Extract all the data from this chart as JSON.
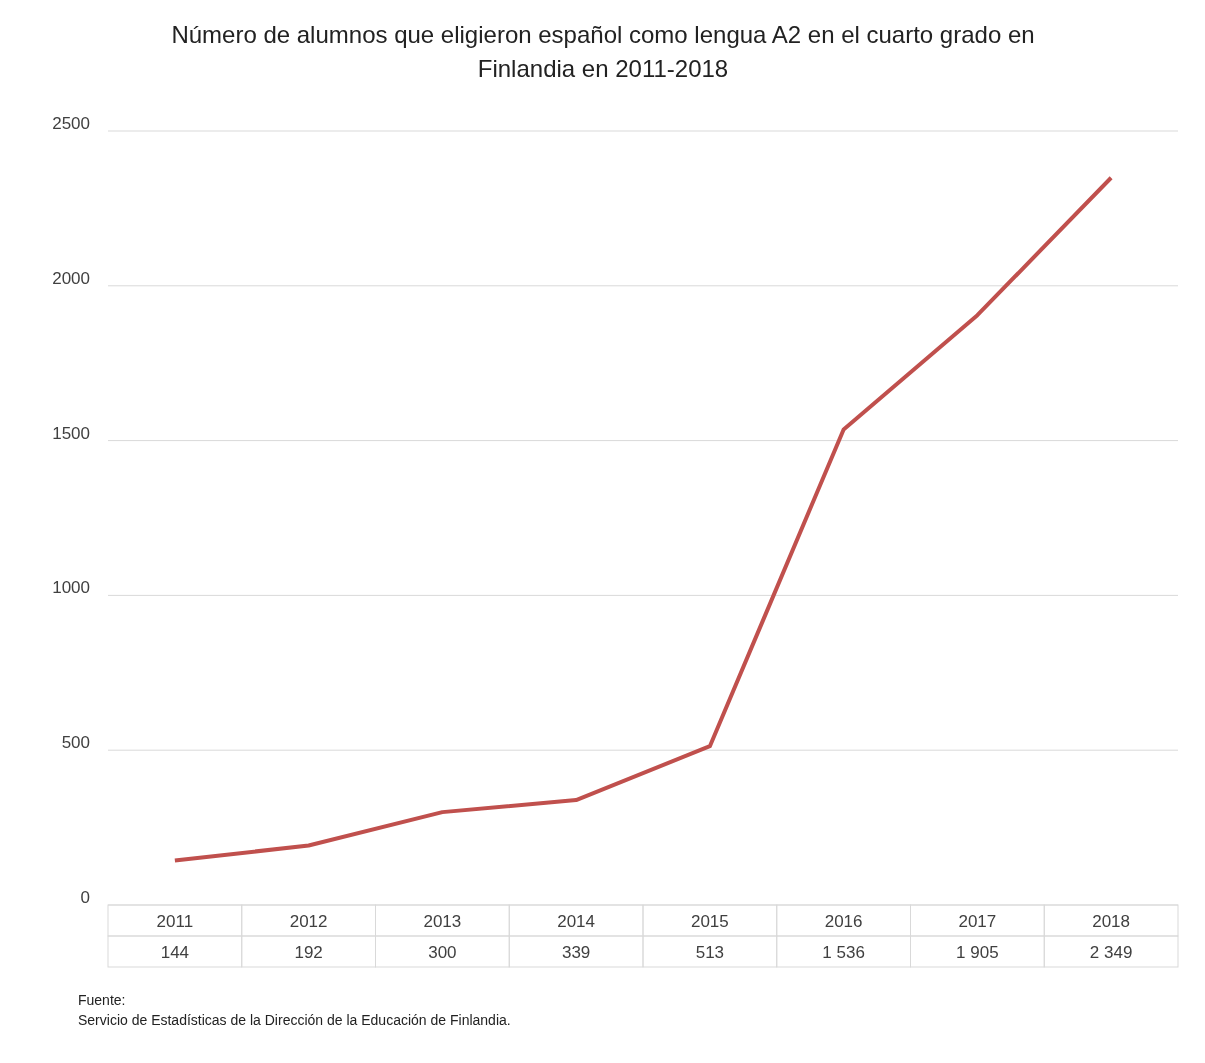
{
  "chart_data": {
    "type": "line",
    "title": "Número de alumnos que eligieron español como lengua A2 en el cuarto grado en Finlandia en 2011-2018",
    "categories": [
      "2011",
      "2012",
      "2013",
      "2014",
      "2015",
      "2016",
      "2017",
      "2018"
    ],
    "series": [
      {
        "color": "#c0504d",
        "values": [
          144,
          192,
          300,
          339,
          513,
          1536,
          1905,
          2349
        ],
        "value_labels": [
          "144",
          "192",
          "300",
          "339",
          "513",
          "1 536",
          "1 905",
          "2 349"
        ]
      }
    ],
    "ylim": [
      0,
      2500
    ],
    "yticks": [
      0,
      500,
      1000,
      1500,
      2000,
      2500
    ],
    "grid": "y",
    "marker": "none",
    "line_style": "solid",
    "annotations": [
      "Fuente:",
      "Servicio de Estadísticas de la Dirección de la Educación de Finlandia."
    ]
  }
}
